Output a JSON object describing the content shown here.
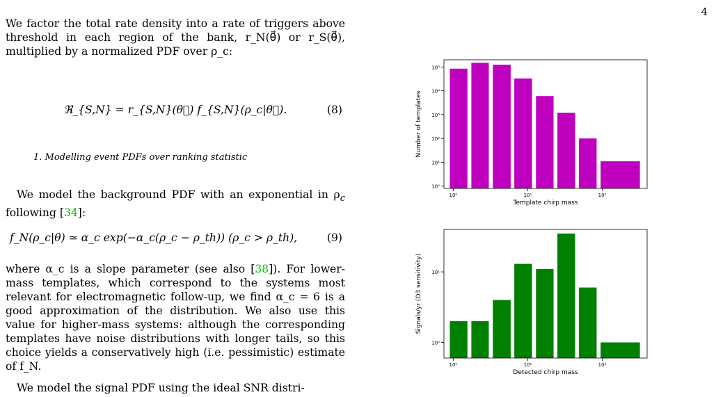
{
  "page": {
    "number": "4"
  },
  "text": {
    "para1": "We factor the total rate density into a rate of triggers above threshold in each region of the bank, r_N(θ⃗) or r_S(θ⃗), multiplied by a normalized PDF over ρ_c:",
    "eq8": "ℜ_{S,N} = r_{S,N}(θ⃗) f_{S,N}(ρ_c|θ⃗).",
    "eq8_num": "(8)",
    "subsection": "1.   Modelling event PDFs over ranking statistic",
    "para2_a": "We model the background PDF with an exponential in ρ",
    "para2_sub": "c",
    "para2_b": " following [",
    "para2_cite": "34",
    "para2_c": "]:",
    "eq9": "f_N(ρ_c|θ) ≃ α_c exp(−α_c(ρ_c − ρ_th))   (ρ_c > ρ_th),",
    "eq9_num": "(9)",
    "para3_a": "where α_c is a slope parameter (see also [",
    "para3_cite": "38",
    "para3_b": "]). For lower-mass templates, which correspond to the systems most relevant for electromagnetic follow-up, we find α_c = 6 is a good approximation of the distribution. We also use this value for higher-mass systems: although the corresponding templates have noise distributions with longer tails, so this choice yields a conservatively high (i.e. pessimistic) estimate of f_N.",
    "para4": "We model the signal PDF using the ideal SNR distri-"
  },
  "colors": {
    "citation": "#00c800",
    "chart1_bar": "#bf00bf",
    "chart2_bar": "#008000"
  },
  "chart_data": [
    {
      "type": "bar",
      "title": "",
      "xlabel": "Template chirp mass",
      "ylabel": "Number of templates",
      "xscale": "log",
      "yscale": "log",
      "xlim": [
        0.75,
        400
      ],
      "ylim": [
        0.8,
        200000
      ],
      "xticks": [
        "10⁰",
        "10¹",
        "10²"
      ],
      "yticks": [
        "10⁰",
        "10¹",
        "10²",
        "10³",
        "10⁴",
        "10⁵"
      ],
      "bars": [
        {
          "x0": 0.9,
          "x1": 1.55,
          "value": 85000
        },
        {
          "x0": 1.75,
          "x1": 3.0,
          "value": 150000
        },
        {
          "x0": 3.4,
          "x1": 5.9,
          "value": 125000
        },
        {
          "x0": 6.6,
          "x1": 11.4,
          "value": 33000
        },
        {
          "x0": 12.9,
          "x1": 22.2,
          "value": 6000
        },
        {
          "x0": 25.0,
          "x1": 43.2,
          "value": 1200
        },
        {
          "x0": 48.7,
          "x1": 84.0,
          "value": 100
        },
        {
          "x0": 95.0,
          "x1": 320.0,
          "value": 11
        }
      ]
    },
    {
      "type": "bar",
      "title": "",
      "xlabel": "Detected chirp mass",
      "ylabel": "Signals/yr (O3 sensitivity)",
      "xscale": "log",
      "yscale": "log",
      "xlim": [
        0.75,
        400
      ],
      "ylim": [
        0.6,
        40
      ],
      "xticks": [
        "10⁰",
        "10¹",
        "10²"
      ],
      "yticks": [
        "10⁰",
        "10¹"
      ],
      "bars": [
        {
          "x0": 0.9,
          "x1": 1.55,
          "value": 2.0
        },
        {
          "x0": 1.75,
          "x1": 3.0,
          "value": 2.0
        },
        {
          "x0": 3.4,
          "x1": 5.9,
          "value": 4.0
        },
        {
          "x0": 6.6,
          "x1": 11.4,
          "value": 13.0
        },
        {
          "x0": 12.9,
          "x1": 22.2,
          "value": 11.0
        },
        {
          "x0": 25.0,
          "x1": 43.2,
          "value": 35.0
        },
        {
          "x0": 48.7,
          "x1": 84.0,
          "value": 6.0
        },
        {
          "x0": 95.0,
          "x1": 320.0,
          "value": 1.0
        }
      ]
    }
  ]
}
